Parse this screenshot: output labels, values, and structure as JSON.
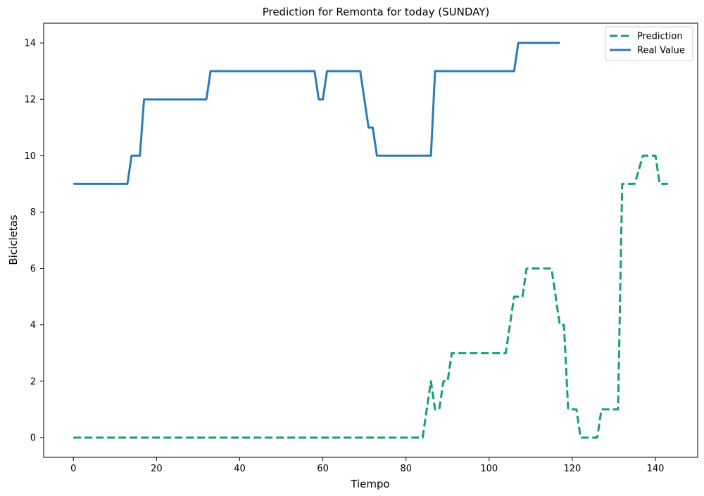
{
  "chart_data": {
    "type": "line",
    "title": "Prediction for Remonta for today (SUNDAY)",
    "xlabel": "Tiempo",
    "ylabel": "Bicicletas",
    "xlim": [
      -7.15,
      150.15
    ],
    "ylim": [
      -0.7,
      14.7
    ],
    "xticks": [
      0,
      20,
      40,
      60,
      80,
      100,
      120,
      140
    ],
    "yticks": [
      0,
      2,
      4,
      6,
      8,
      10,
      12,
      14
    ],
    "grid": false,
    "legend_position": "top-right",
    "series": [
      {
        "name": "Prediction",
        "color": "#179c7d",
        "style": "dashed",
        "points": [
          [
            0,
            0
          ],
          [
            84,
            0
          ],
          [
            86,
            2
          ],
          [
            87,
            1
          ],
          [
            88,
            1
          ],
          [
            89,
            2
          ],
          [
            90,
            2
          ],
          [
            91,
            3
          ],
          [
            104,
            3
          ],
          [
            106,
            5
          ],
          [
            108,
            5
          ],
          [
            109,
            6
          ],
          [
            115,
            6
          ],
          [
            117,
            4
          ],
          [
            118,
            4
          ],
          [
            119,
            1
          ],
          [
            121,
            1
          ],
          [
            122,
            0
          ],
          [
            126,
            0
          ],
          [
            127,
            1
          ],
          [
            131,
            1
          ],
          [
            132,
            9
          ],
          [
            135,
            9
          ],
          [
            137,
            10
          ],
          [
            140,
            10
          ],
          [
            141,
            9
          ],
          [
            143,
            9
          ]
        ]
      },
      {
        "name": "Real Value",
        "color": "#2b7bb4",
        "style": "solid",
        "points": [
          [
            0,
            9
          ],
          [
            13,
            9
          ],
          [
            14,
            10
          ],
          [
            16,
            10
          ],
          [
            17,
            12
          ],
          [
            32,
            12
          ],
          [
            33,
            13
          ],
          [
            58,
            13
          ],
          [
            59,
            12
          ],
          [
            60,
            12
          ],
          [
            61,
            13
          ],
          [
            69,
            13
          ],
          [
            71,
            11
          ],
          [
            72,
            11
          ],
          [
            73,
            10
          ],
          [
            86,
            10
          ],
          [
            87,
            13
          ],
          [
            106,
            13
          ],
          [
            107,
            14
          ],
          [
            117,
            14
          ]
        ]
      }
    ]
  }
}
